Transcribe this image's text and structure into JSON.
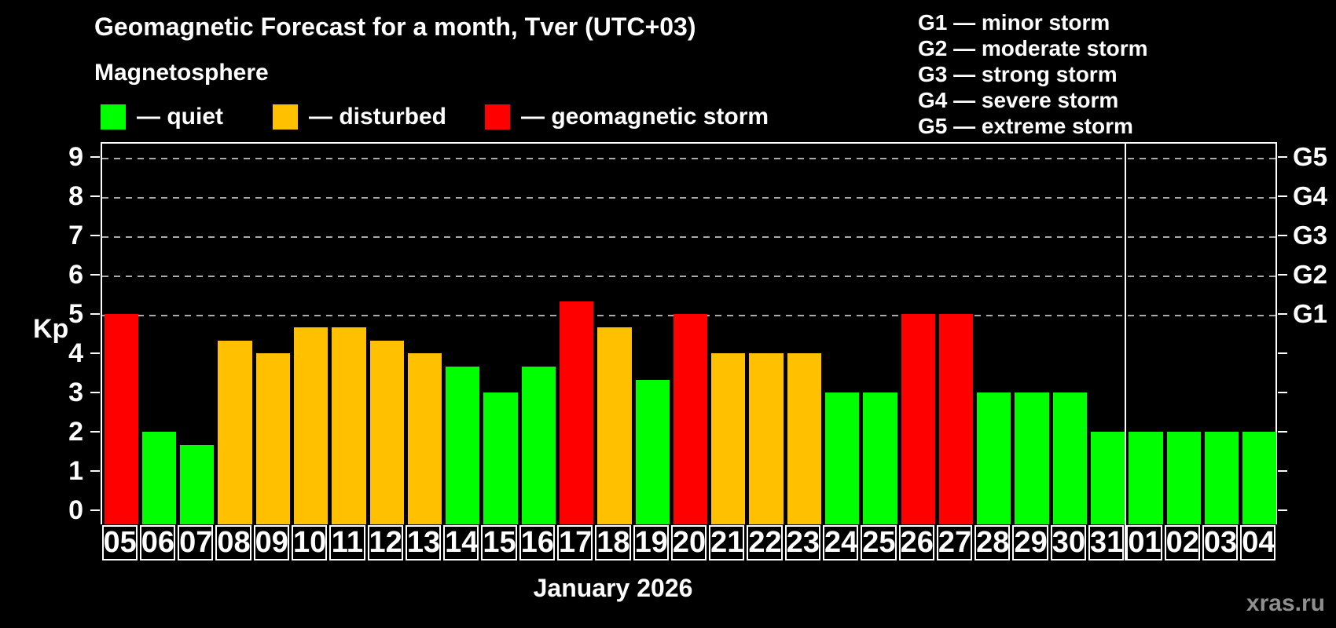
{
  "title": "Geomagnetic Forecast for a month, Tver (UTC+03)",
  "subtitle": "Magnetosphere",
  "legend": {
    "items": [
      {
        "key": "quiet",
        "label": "— quiet",
        "color": "#00ff00"
      },
      {
        "key": "disturbed",
        "label": "— disturbed",
        "color": "#ffc000"
      },
      {
        "key": "storm",
        "label": "— geomagnetic storm",
        "color": "#ff0000"
      }
    ]
  },
  "storm_scale_legend": [
    "G1 — minor storm",
    "G2 — moderate storm",
    "G3 — strong storm",
    "G4 — severe storm",
    "G5 — extreme storm"
  ],
  "watermark": "xras.ru",
  "chart_data": {
    "type": "bar",
    "title": "Geomagnetic Forecast for a month, Tver (UTC+03)",
    "ylabel": "Kp",
    "xlabel": "January 2026",
    "ylim": [
      0,
      9
    ],
    "yticks_left": [
      0,
      1,
      2,
      3,
      4,
      5,
      6,
      7,
      8,
      9
    ],
    "right_axis_labels": [
      {
        "kp": 5,
        "label": "G1"
      },
      {
        "kp": 6,
        "label": "G2"
      },
      {
        "kp": 7,
        "label": "G3"
      },
      {
        "kp": 8,
        "label": "G4"
      },
      {
        "kp": 9,
        "label": "G5"
      }
    ],
    "grid": "dashed horizontal lines at Kp 5–9 only",
    "legend_position": "top-left",
    "categories": [
      "05",
      "06",
      "07",
      "08",
      "09",
      "10",
      "11",
      "12",
      "13",
      "14",
      "15",
      "16",
      "17",
      "18",
      "19",
      "20",
      "21",
      "22",
      "23",
      "24",
      "25",
      "26",
      "27",
      "28",
      "29",
      "30",
      "31",
      "01",
      "02",
      "03",
      "04"
    ],
    "values": [
      5,
      2,
      1.67,
      4.33,
      4,
      4.67,
      4.67,
      4.33,
      4,
      3.67,
      3,
      3.67,
      5.33,
      4.67,
      3.33,
      5,
      4,
      4,
      4,
      3,
      3,
      5,
      5,
      3,
      3,
      3,
      2,
      2,
      2,
      2,
      2
    ],
    "states": [
      "storm",
      "quiet",
      "quiet",
      "disturbed",
      "disturbed",
      "disturbed",
      "disturbed",
      "disturbed",
      "disturbed",
      "quiet",
      "quiet",
      "quiet",
      "storm",
      "disturbed",
      "quiet",
      "storm",
      "disturbed",
      "disturbed",
      "disturbed",
      "quiet",
      "quiet",
      "storm",
      "storm",
      "quiet",
      "quiet",
      "quiet",
      "quiet",
      "quiet",
      "quiet",
      "quiet",
      "quiet"
    ],
    "state_colors": {
      "quiet": "#00ff00",
      "disturbed": "#ffc000",
      "storm": "#ff0000"
    },
    "month_separator_after_index": 26
  }
}
